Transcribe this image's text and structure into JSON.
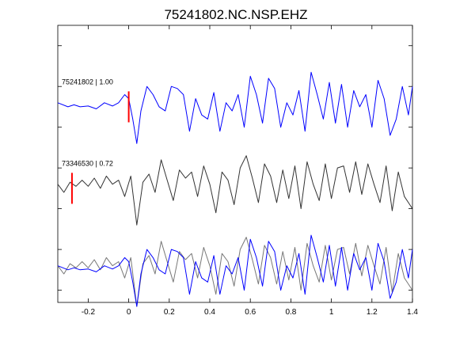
{
  "chart_data": {
    "type": "line",
    "title": "75241802.NC.NSP.EHZ",
    "xlabel": "",
    "ylabel": "",
    "xlim": [
      -0.35,
      1.4
    ],
    "x_ticks": [
      "-0.2",
      "0",
      "0.2",
      "0.4",
      "0.6",
      "0.8",
      "1",
      "1.2",
      "1.4"
    ],
    "x_tick_values": [
      -0.2,
      0,
      0.2,
      0.4,
      0.6,
      0.8,
      1.0,
      1.2,
      1.4
    ],
    "ylim": [
      -4.8,
      2.0
    ],
    "y_tick_values": [
      1.5,
      0.5,
      -0.5,
      -1.5,
      -2.5,
      -3.5,
      -4.5
    ],
    "grid": false,
    "traces": [
      {
        "id": "75241802",
        "label": "75241802 | 1.00",
        "color": "#0000ff",
        "offset": 0,
        "pick_time": 0.0,
        "pick_color": "#ff0000",
        "time": [
          -0.35,
          -0.3,
          -0.27,
          -0.24,
          -0.2,
          -0.16,
          -0.12,
          -0.08,
          -0.05,
          -0.02,
          0.0,
          0.02,
          0.04,
          0.06,
          0.09,
          0.12,
          0.15,
          0.18,
          0.21,
          0.24,
          0.27,
          0.3,
          0.33,
          0.36,
          0.39,
          0.42,
          0.45,
          0.48,
          0.51,
          0.54,
          0.57,
          0.6,
          0.63,
          0.66,
          0.69,
          0.72,
          0.75,
          0.78,
          0.81,
          0.84,
          0.87,
          0.9,
          0.93,
          0.96,
          0.99,
          1.02,
          1.05,
          1.08,
          1.11,
          1.14,
          1.17,
          1.2,
          1.23,
          1.26,
          1.29,
          1.32,
          1.35,
          1.38,
          1.4
        ],
        "amplitude": [
          0.1,
          0.0,
          0.05,
          0.0,
          0.02,
          -0.05,
          0.1,
          0.02,
          0.1,
          0.3,
          0.2,
          -0.3,
          -0.9,
          -0.1,
          0.5,
          0.3,
          0.0,
          -0.1,
          0.5,
          0.45,
          0.3,
          -0.6,
          0.2,
          -0.2,
          -0.3,
          0.35,
          -0.6,
          0.1,
          -0.1,
          0.3,
          -0.5,
          0.75,
          0.3,
          -0.4,
          0.7,
          0.45,
          -0.5,
          0.1,
          -0.2,
          0.4,
          -0.6,
          0.85,
          0.3,
          -0.3,
          0.6,
          -0.4,
          0.55,
          -0.5,
          0.4,
          0.0,
          0.3,
          -0.5,
          0.65,
          0.2,
          -0.7,
          -0.3,
          0.5,
          -0.2,
          0.5
        ]
      },
      {
        "id": "73346530",
        "label": "73346530 | 0.72",
        "color": "#333333",
        "offset": -2,
        "pick_time": -0.28,
        "pick_color": "#ff0000",
        "time": [
          -0.35,
          -0.32,
          -0.29,
          -0.26,
          -0.23,
          -0.2,
          -0.17,
          -0.14,
          -0.11,
          -0.08,
          -0.05,
          -0.02,
          0.01,
          0.04,
          0.07,
          0.1,
          0.13,
          0.16,
          0.19,
          0.22,
          0.25,
          0.28,
          0.31,
          0.34,
          0.37,
          0.4,
          0.43,
          0.46,
          0.49,
          0.52,
          0.55,
          0.58,
          0.61,
          0.64,
          0.67,
          0.7,
          0.73,
          0.76,
          0.79,
          0.82,
          0.85,
          0.88,
          0.91,
          0.94,
          0.97,
          1.0,
          1.03,
          1.06,
          1.09,
          1.12,
          1.15,
          1.18,
          1.21,
          1.24,
          1.27,
          1.3,
          1.33,
          1.36,
          1.4
        ],
        "amplitude": [
          0.1,
          -0.1,
          0.15,
          0.05,
          0.2,
          0.05,
          0.25,
          0.0,
          0.3,
          0.1,
          0.2,
          -0.2,
          0.3,
          -0.9,
          0.15,
          0.35,
          -0.1,
          0.7,
          0.2,
          -0.3,
          0.45,
          0.25,
          0.4,
          -0.2,
          0.55,
          0.1,
          -0.6,
          0.4,
          0.2,
          -0.4,
          0.5,
          0.8,
          0.25,
          -0.35,
          0.6,
          0.3,
          -0.35,
          0.45,
          -0.25,
          0.55,
          -0.5,
          0.65,
          0.1,
          -0.3,
          0.6,
          -0.25,
          0.5,
          0.55,
          -0.1,
          0.65,
          -0.15,
          0.6,
          0.1,
          -0.35,
          0.55,
          -0.55,
          0.4,
          -0.2,
          -0.5
        ]
      },
      {
        "id": "overlay",
        "label": "",
        "offset": -4,
        "series": [
          {
            "color": "#777777",
            "time": [
              -0.35,
              -0.32,
              -0.29,
              -0.26,
              -0.23,
              -0.2,
              -0.17,
              -0.14,
              -0.11,
              -0.08,
              -0.05,
              -0.02,
              0.01,
              0.04,
              0.07,
              0.1,
              0.13,
              0.16,
              0.19,
              0.22,
              0.25,
              0.28,
              0.31,
              0.34,
              0.37,
              0.4,
              0.43,
              0.46,
              0.49,
              0.52,
              0.55,
              0.58,
              0.61,
              0.64,
              0.67,
              0.7,
              0.73,
              0.76,
              0.79,
              0.82,
              0.85,
              0.88,
              0.91,
              0.94,
              0.97,
              1.0,
              1.03,
              1.06,
              1.09,
              1.12,
              1.15,
              1.18,
              1.21,
              1.24,
              1.27,
              1.3,
              1.33,
              1.36,
              1.4
            ],
            "amplitude": [
              0.1,
              -0.1,
              0.15,
              0.05,
              0.2,
              0.05,
              0.25,
              0.0,
              0.3,
              0.1,
              0.2,
              -0.2,
              0.3,
              -0.9,
              0.15,
              0.35,
              -0.1,
              0.7,
              0.2,
              -0.3,
              0.45,
              0.25,
              0.4,
              -0.2,
              0.55,
              0.1,
              -0.6,
              0.4,
              0.2,
              -0.4,
              0.5,
              0.8,
              0.25,
              -0.35,
              0.6,
              0.3,
              -0.35,
              0.45,
              -0.25,
              0.55,
              -0.5,
              0.65,
              0.1,
              -0.3,
              0.6,
              -0.25,
              0.5,
              0.55,
              -0.1,
              0.65,
              -0.15,
              0.6,
              0.1,
              -0.35,
              0.55,
              -0.55,
              0.4,
              -0.2,
              -0.5
            ]
          },
          {
            "color": "#0000ff",
            "time": [
              -0.35,
              -0.3,
              -0.27,
              -0.24,
              -0.2,
              -0.16,
              -0.12,
              -0.08,
              -0.05,
              -0.02,
              0.0,
              0.02,
              0.04,
              0.06,
              0.09,
              0.12,
              0.15,
              0.18,
              0.21,
              0.24,
              0.27,
              0.3,
              0.33,
              0.36,
              0.39,
              0.42,
              0.45,
              0.48,
              0.51,
              0.54,
              0.57,
              0.6,
              0.63,
              0.66,
              0.69,
              0.72,
              0.75,
              0.78,
              0.81,
              0.84,
              0.87,
              0.9,
              0.93,
              0.96,
              0.99,
              1.02,
              1.05,
              1.08,
              1.11,
              1.14,
              1.17,
              1.2,
              1.23,
              1.26,
              1.29,
              1.32,
              1.35,
              1.38,
              1.4
            ],
            "amplitude": [
              0.1,
              0.0,
              0.05,
              0.0,
              0.02,
              -0.05,
              0.1,
              0.02,
              0.1,
              0.3,
              0.2,
              -0.3,
              -0.9,
              -0.1,
              0.5,
              0.3,
              0.0,
              -0.1,
              0.5,
              0.45,
              0.3,
              -0.6,
              0.2,
              -0.2,
              -0.3,
              0.35,
              -0.6,
              0.1,
              -0.1,
              0.3,
              -0.5,
              0.75,
              0.3,
              -0.4,
              0.7,
              0.45,
              -0.5,
              0.1,
              -0.2,
              0.4,
              -0.6,
              0.85,
              0.3,
              -0.3,
              0.6,
              -0.4,
              0.55,
              -0.5,
              0.4,
              0.0,
              0.3,
              -0.5,
              0.65,
              0.2,
              -0.7,
              -0.3,
              0.5,
              -0.2,
              0.5
            ]
          }
        ]
      }
    ]
  }
}
